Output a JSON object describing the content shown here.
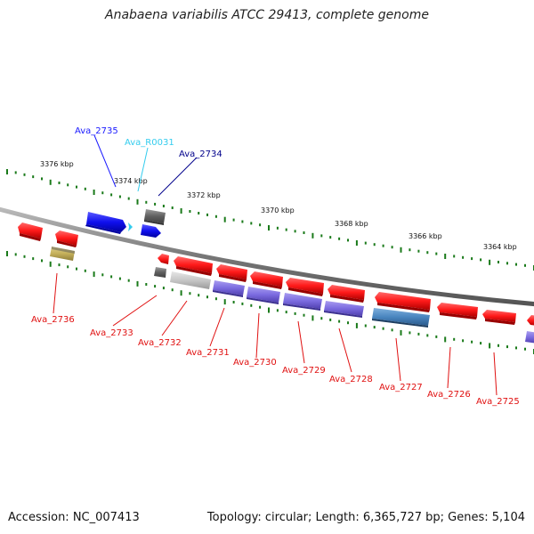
{
  "title": "Anabaena variabilis ATCC 29413, complete genome",
  "footer": {
    "accession": "Accession: NC_007413",
    "summary": "Topology: circular; Length: 6,365,727 bp; Genes: 5,104"
  },
  "colors": {
    "backbone": "#888888",
    "tick": "#1a7a1a",
    "red": "#ff1a1a",
    "blue": "#1a1aff",
    "navy": "#00008b",
    "cyan": "#33ccee",
    "gray": "#666666",
    "khaki": "#c8b560",
    "purple": "#7f6fe0",
    "steel": "#4a86c0",
    "lightgray": "#c8c8c8"
  },
  "scale_labels": [
    "3376 kbp",
    "3374 kbp",
    "3372 kbp",
    "3370 kbp",
    "3368 kbp",
    "3366 kbp",
    "3364 kbp"
  ],
  "gene_labels": [
    {
      "text": "Ava_2735",
      "color": "#1a1aff"
    },
    {
      "text": "Ava_R0031",
      "color": "#33ccee"
    },
    {
      "text": "Ava_2734",
      "color": "#00008b"
    },
    {
      "text": "Ava_2736",
      "color": "#e01010"
    },
    {
      "text": "Ava_2733",
      "color": "#e01010"
    },
    {
      "text": "Ava_2732",
      "color": "#e01010"
    },
    {
      "text": "Ava_2731",
      "color": "#e01010"
    },
    {
      "text": "Ava_2730",
      "color": "#e01010"
    },
    {
      "text": "Ava_2729",
      "color": "#e01010"
    },
    {
      "text": "Ava_2728",
      "color": "#e01010"
    },
    {
      "text": "Ava_2727",
      "color": "#e01010"
    },
    {
      "text": "Ava_2726",
      "color": "#e01010"
    },
    {
      "text": "Ava_2725",
      "color": "#e01010"
    }
  ]
}
